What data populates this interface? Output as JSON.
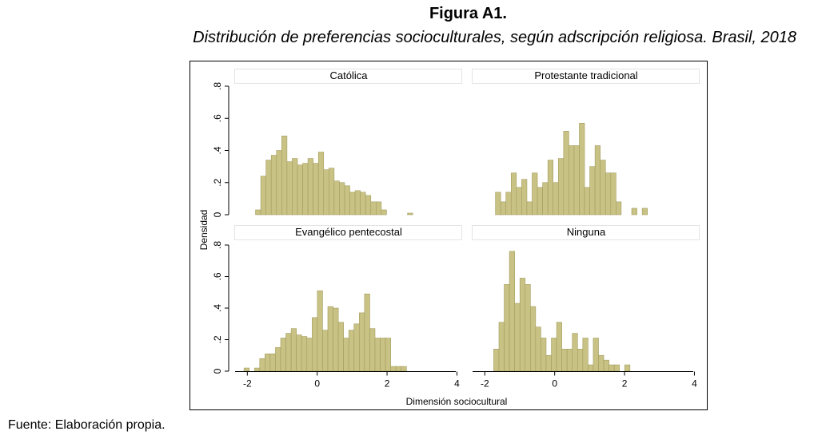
{
  "figure": {
    "title": "Figura A1.",
    "subtitle": "Distribución de preferencias socioculturales, según adscripción religiosa. Brasil, 2018",
    "source": "Fuente: Elaboración propia."
  },
  "colors": {
    "bar_fill": "#c9c285",
    "bar_stroke": "#a39c5e",
    "panel_header_bg": "#ffffff",
    "panel_header_border": "#e4e4e4",
    "frame": "#000000"
  },
  "chart_data": {
    "type": "bar",
    "subtype": "histogram-facets",
    "xlabel": "Dimensión sociocultural",
    "ylabel": "Densidad",
    "xlim": [
      -2.35,
      4.15
    ],
    "ylim": [
      0,
      0.8
    ],
    "xticks": [
      -2,
      0,
      2,
      4
    ],
    "yticks": [
      0,
      0.2,
      0.4,
      0.6,
      0.8
    ],
    "ytick_labels": [
      "0",
      ".2",
      ".4",
      ".6",
      ".8"
    ],
    "grid": false,
    "bin_width": 0.15,
    "panels": [
      {
        "name": "Católica",
        "bins": [
          {
            "x": -1.69,
            "y": 0.03
          },
          {
            "x": -1.54,
            "y": 0.24
          },
          {
            "x": -1.39,
            "y": 0.34
          },
          {
            "x": -1.24,
            "y": 0.37
          },
          {
            "x": -1.09,
            "y": 0.4
          },
          {
            "x": -0.94,
            "y": 0.49
          },
          {
            "x": -0.79,
            "y": 0.33
          },
          {
            "x": -0.64,
            "y": 0.35
          },
          {
            "x": -0.49,
            "y": 0.31
          },
          {
            "x": -0.34,
            "y": 0.32
          },
          {
            "x": -0.19,
            "y": 0.35
          },
          {
            "x": -0.04,
            "y": 0.32
          },
          {
            "x": 0.11,
            "y": 0.39
          },
          {
            "x": 0.26,
            "y": 0.28
          },
          {
            "x": 0.41,
            "y": 0.29
          },
          {
            "x": 0.56,
            "y": 0.21
          },
          {
            "x": 0.71,
            "y": 0.2
          },
          {
            "x": 0.86,
            "y": 0.18
          },
          {
            "x": 1.01,
            "y": 0.14
          },
          {
            "x": 1.16,
            "y": 0.15
          },
          {
            "x": 1.31,
            "y": 0.14
          },
          {
            "x": 1.46,
            "y": 0.12
          },
          {
            "x": 1.61,
            "y": 0.08
          },
          {
            "x": 1.76,
            "y": 0.08
          },
          {
            "x": 1.91,
            "y": 0.03
          },
          {
            "x": 2.66,
            "y": 0.01
          }
        ]
      },
      {
        "name": "Protestante tradicional",
        "bins": [
          {
            "x": -1.62,
            "y": 0.14
          },
          {
            "x": -1.47,
            "y": 0.08
          },
          {
            "x": -1.32,
            "y": 0.14
          },
          {
            "x": -1.17,
            "y": 0.26
          },
          {
            "x": -1.02,
            "y": 0.17
          },
          {
            "x": -0.87,
            "y": 0.22
          },
          {
            "x": -0.72,
            "y": 0.08
          },
          {
            "x": -0.57,
            "y": 0.26
          },
          {
            "x": -0.42,
            "y": 0.17
          },
          {
            "x": -0.27,
            "y": 0.2
          },
          {
            "x": -0.12,
            "y": 0.34
          },
          {
            "x": 0.03,
            "y": 0.2
          },
          {
            "x": 0.18,
            "y": 0.35
          },
          {
            "x": 0.33,
            "y": 0.52
          },
          {
            "x": 0.48,
            "y": 0.43
          },
          {
            "x": 0.63,
            "y": 0.43
          },
          {
            "x": 0.78,
            "y": 0.57
          },
          {
            "x": 0.93,
            "y": 0.17
          },
          {
            "x": 1.08,
            "y": 0.3
          },
          {
            "x": 1.23,
            "y": 0.43
          },
          {
            "x": 1.38,
            "y": 0.34
          },
          {
            "x": 1.53,
            "y": 0.26
          },
          {
            "x": 1.68,
            "y": 0.26
          },
          {
            "x": 1.83,
            "y": 0.08
          },
          {
            "x": 2.28,
            "y": 0.04
          },
          {
            "x": 2.58,
            "y": 0.04
          }
        ]
      },
      {
        "name": "Evangélico pentecostal",
        "bins": [
          {
            "x": -2.02,
            "y": 0.02
          },
          {
            "x": -1.72,
            "y": 0.02
          },
          {
            "x": -1.57,
            "y": 0.08
          },
          {
            "x": -1.42,
            "y": 0.11
          },
          {
            "x": -1.27,
            "y": 0.11
          },
          {
            "x": -1.12,
            "y": 0.15
          },
          {
            "x": -0.97,
            "y": 0.21
          },
          {
            "x": -0.82,
            "y": 0.24
          },
          {
            "x": -0.67,
            "y": 0.27
          },
          {
            "x": -0.52,
            "y": 0.23
          },
          {
            "x": -0.37,
            "y": 0.22
          },
          {
            "x": -0.22,
            "y": 0.21
          },
          {
            "x": -0.07,
            "y": 0.34
          },
          {
            "x": 0.08,
            "y": 0.51
          },
          {
            "x": 0.23,
            "y": 0.26
          },
          {
            "x": 0.38,
            "y": 0.41
          },
          {
            "x": 0.53,
            "y": 0.4
          },
          {
            "x": 0.68,
            "y": 0.31
          },
          {
            "x": 0.83,
            "y": 0.21
          },
          {
            "x": 0.98,
            "y": 0.26
          },
          {
            "x": 1.13,
            "y": 0.3
          },
          {
            "x": 1.28,
            "y": 0.37
          },
          {
            "x": 1.43,
            "y": 0.49
          },
          {
            "x": 1.58,
            "y": 0.27
          },
          {
            "x": 1.73,
            "y": 0.21
          },
          {
            "x": 1.88,
            "y": 0.21
          },
          {
            "x": 2.03,
            "y": 0.21
          },
          {
            "x": 2.18,
            "y": 0.03
          },
          {
            "x": 2.33,
            "y": 0.03
          },
          {
            "x": 2.48,
            "y": 0.03
          }
        ]
      },
      {
        "name": "Ninguna",
        "bins": [
          {
            "x": -1.67,
            "y": 0.14
          },
          {
            "x": -1.52,
            "y": 0.31
          },
          {
            "x": -1.37,
            "y": 0.55
          },
          {
            "x": -1.22,
            "y": 0.76
          },
          {
            "x": -1.07,
            "y": 0.43
          },
          {
            "x": -0.92,
            "y": 0.59
          },
          {
            "x": -0.77,
            "y": 0.55
          },
          {
            "x": -0.62,
            "y": 0.41
          },
          {
            "x": -0.47,
            "y": 0.28
          },
          {
            "x": -0.32,
            "y": 0.21
          },
          {
            "x": -0.17,
            "y": 0.1
          },
          {
            "x": -0.02,
            "y": 0.21
          },
          {
            "x": 0.13,
            "y": 0.31
          },
          {
            "x": 0.28,
            "y": 0.14
          },
          {
            "x": 0.43,
            "y": 0.14
          },
          {
            "x": 0.58,
            "y": 0.24
          },
          {
            "x": 0.73,
            "y": 0.14
          },
          {
            "x": 0.88,
            "y": 0.21
          },
          {
            "x": 1.03,
            "y": 0.04
          },
          {
            "x": 1.18,
            "y": 0.21
          },
          {
            "x": 1.33,
            "y": 0.1
          },
          {
            "x": 1.48,
            "y": 0.07
          },
          {
            "x": 1.63,
            "y": 0.04
          },
          {
            "x": 1.78,
            "y": 0.04
          },
          {
            "x": 2.08,
            "y": 0.04
          }
        ]
      }
    ]
  }
}
